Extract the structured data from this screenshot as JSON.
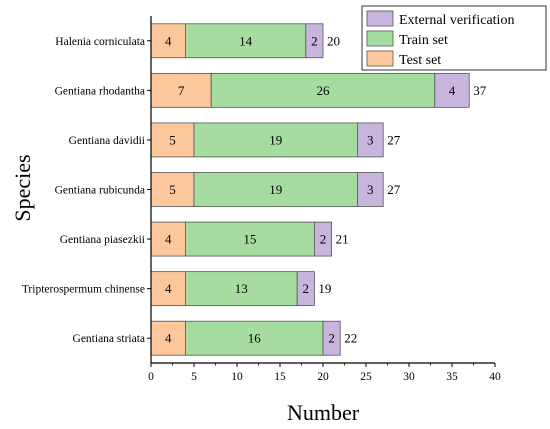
{
  "chart_data": {
    "type": "bar",
    "orientation": "horizontal",
    "stacked": true,
    "xlabel": "Number",
    "ylabel": "Species",
    "xlim": [
      0,
      40
    ],
    "xticks": [
      0,
      5,
      10,
      15,
      20,
      25,
      30,
      35,
      40
    ],
    "categories": [
      "Halenia corniculata",
      "Gentiana rhodantha",
      "Gentiana davidii",
      "Gentiana rubicunda",
      "Gentiana piasezkii",
      "Tripterospermum chinense",
      "Gentiana striata"
    ],
    "series": [
      {
        "name": "Test set",
        "color": "#fbc79b",
        "values": [
          4,
          7,
          5,
          5,
          4,
          4,
          4
        ]
      },
      {
        "name": "Train set",
        "color": "#a6dca0",
        "values": [
          14,
          26,
          19,
          19,
          15,
          13,
          16
        ]
      },
      {
        "name": "External verification",
        "color": "#c7b5de",
        "values": [
          2,
          4,
          3,
          3,
          2,
          2,
          2
        ]
      }
    ],
    "totals": [
      20,
      37,
      27,
      27,
      21,
      19,
      22
    ],
    "legend": {
      "placement": "top-right",
      "order": [
        "External verification",
        "Train set",
        "Test set"
      ]
    },
    "grid": false
  }
}
